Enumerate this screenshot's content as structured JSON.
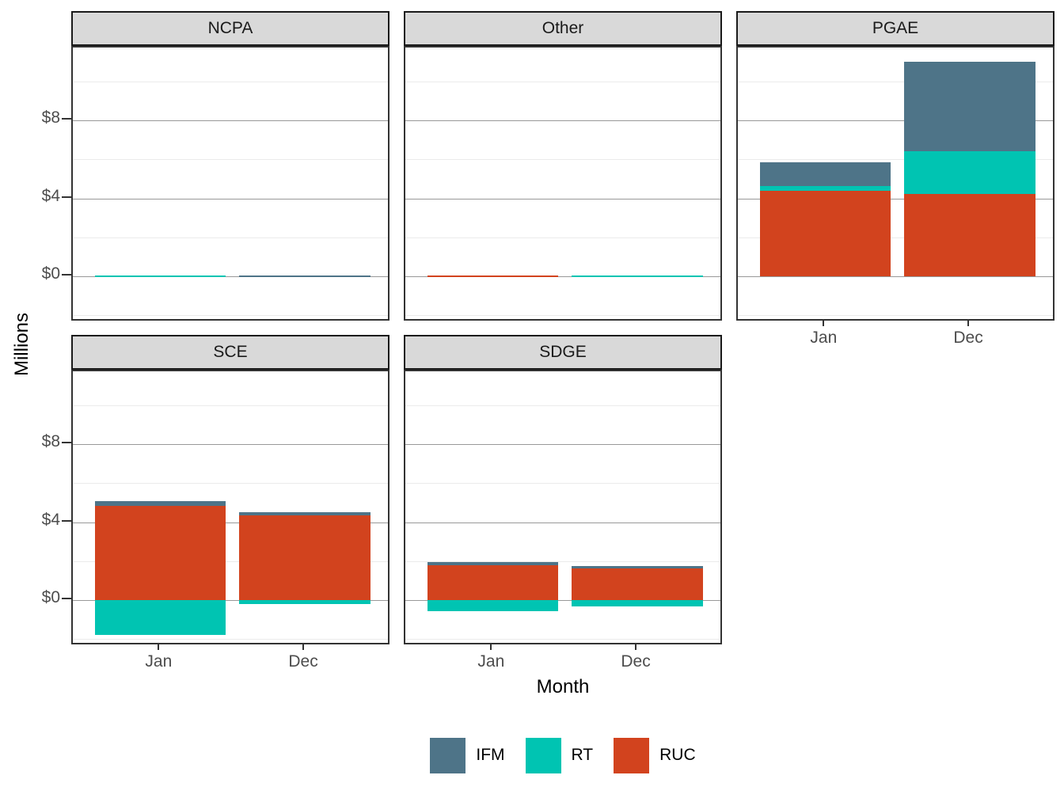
{
  "chart_data": {
    "type": "bar",
    "variant": "stacked-faceted",
    "title": "",
    "xlabel": "Month",
    "ylabel": "Millions",
    "categories": [
      "Jan",
      "Dec"
    ],
    "ylim": [
      -2.36,
      11.75
    ],
    "y_major_ticks": [
      {
        "value": 0,
        "label": "$0"
      },
      {
        "value": 4,
        "label": "$4"
      },
      {
        "value": 8,
        "label": "$8"
      }
    ],
    "y_minor_ticks": [
      -2,
      2,
      6,
      10
    ],
    "grid": true,
    "legend_position": "bottom",
    "series_order": [
      "RUC",
      "RT",
      "IFM"
    ],
    "series_colors": {
      "IFM": "#4e7488",
      "RT": "#00c4b2",
      "RUC": "#d2431e"
    },
    "legend": [
      {
        "name": "IFM",
        "color": "#4e7488"
      },
      {
        "name": "RT",
        "color": "#00c4b2"
      },
      {
        "name": "RUC",
        "color": "#d2431e"
      }
    ],
    "facets": [
      {
        "label": "NCPA",
        "series": {
          "IFM": [
            0,
            0.05
          ],
          "RT": [
            0.05,
            0
          ],
          "RUC": [
            0,
            0
          ]
        }
      },
      {
        "label": "Other",
        "series": {
          "IFM": [
            0,
            0
          ],
          "RT": [
            0,
            0.05
          ],
          "RUC": [
            0.05,
            0
          ]
        }
      },
      {
        "label": "PGAE",
        "series": {
          "IFM": [
            1.22,
            4.59
          ],
          "RT": [
            0.24,
            2.18
          ],
          "RUC": [
            4.39,
            4.24
          ]
        }
      },
      {
        "label": "SCE",
        "series": {
          "IFM": [
            0.24,
            0.15
          ],
          "RT": [
            -1.8,
            -0.2
          ],
          "RUC": [
            4.84,
            4.35
          ]
        }
      },
      {
        "label": "SDGE",
        "series": {
          "IFM": [
            0.16,
            0.13
          ],
          "RT": [
            -0.57,
            -0.33
          ],
          "RUC": [
            1.8,
            1.62
          ]
        }
      }
    ]
  }
}
